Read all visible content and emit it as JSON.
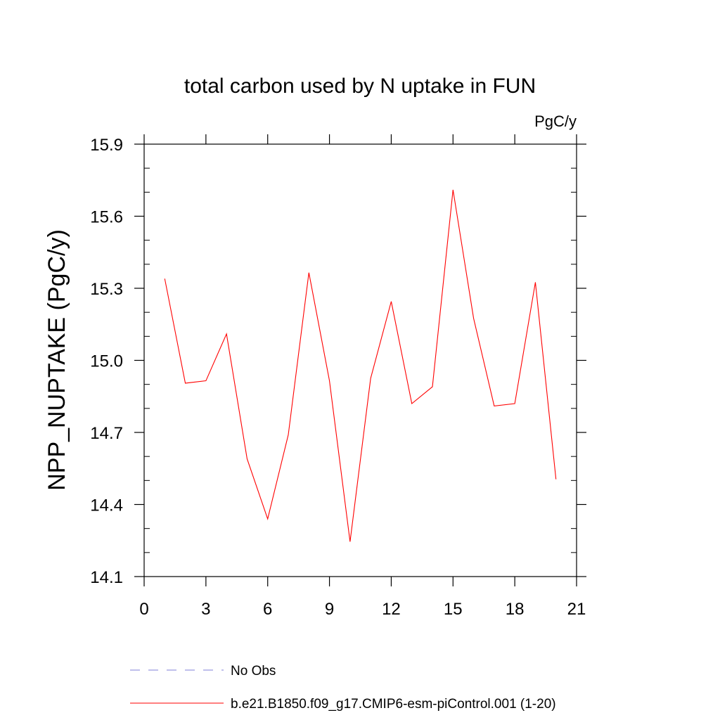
{
  "chart_data": {
    "type": "line",
    "title": "total carbon used by N uptake in FUN",
    "units": "PgC/y",
    "ylabel": "NPP_NUPTAKE  (PgC/y)",
    "xlabel": "",
    "xlim": [
      0,
      21
    ],
    "ylim": [
      14.1,
      15.9
    ],
    "x_ticks": [
      "0",
      "3",
      "6",
      "9",
      "12",
      "15",
      "18",
      "21"
    ],
    "y_ticks": [
      "14.1",
      "14.4",
      "14.7",
      "15.0",
      "15.3",
      "15.6",
      "15.9"
    ],
    "series": [
      {
        "name": "b.e21.B1850.f09_g17.CMIP6-esm-piControl.001 (1-20)",
        "color": "#ff0000",
        "style": "solid",
        "x": [
          1,
          2,
          3,
          4,
          5,
          6,
          7,
          8,
          9,
          10,
          11,
          12,
          13,
          14,
          15,
          16,
          17,
          18,
          19,
          20
        ],
        "values": [
          15.34,
          14.905,
          14.915,
          15.11,
          14.59,
          14.34,
          14.69,
          15.365,
          14.915,
          14.245,
          14.925,
          15.245,
          14.82,
          14.89,
          15.71,
          15.175,
          14.81,
          14.82,
          15.325,
          14.505
        ]
      }
    ],
    "legend": [
      {
        "label": "No Obs",
        "color": "#7f7fd9",
        "style": "dashed"
      },
      {
        "label": "b.e21.B1850.f09_g17.CMIP6-esm-piControl.001 (1-20)",
        "color": "#ff0000",
        "style": "solid"
      }
    ],
    "legend_position": "bottom",
    "grid": false
  }
}
